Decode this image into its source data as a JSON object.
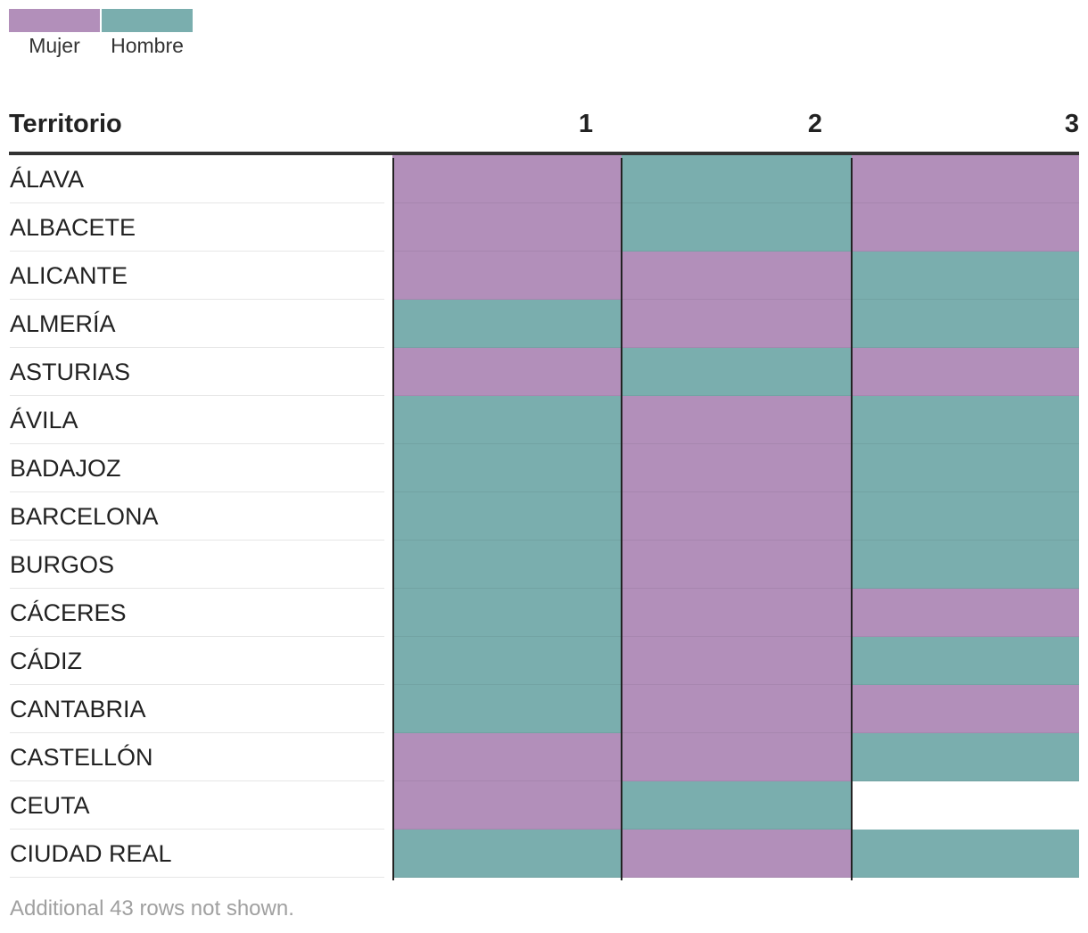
{
  "legend": [
    {
      "label": "Mujer",
      "color": "#b28fba"
    },
    {
      "label": "Hombre",
      "color": "#7aaeae"
    }
  ],
  "colors": {
    "Mujer": "#b28fba",
    "Hombre": "#7aaeae",
    "empty": "#ffffff"
  },
  "table": {
    "headers": [
      "Territorio",
      "1",
      "2",
      "3"
    ]
  },
  "chart_data": {
    "type": "table",
    "columns": [
      "Territorio",
      "1",
      "2",
      "3"
    ],
    "rows": [
      {
        "territorio": "ÁLAVA",
        "values": [
          "Mujer",
          "Hombre",
          "Mujer"
        ]
      },
      {
        "territorio": "ALBACETE",
        "values": [
          "Mujer",
          "Hombre",
          "Mujer"
        ]
      },
      {
        "territorio": "ALICANTE",
        "values": [
          "Mujer",
          "Mujer",
          "Hombre"
        ]
      },
      {
        "territorio": "ALMERÍA",
        "values": [
          "Hombre",
          "Mujer",
          "Hombre"
        ]
      },
      {
        "territorio": "ASTURIAS",
        "values": [
          "Mujer",
          "Hombre",
          "Mujer"
        ]
      },
      {
        "territorio": "ÁVILA",
        "values": [
          "Hombre",
          "Mujer",
          "Hombre"
        ]
      },
      {
        "territorio": "BADAJOZ",
        "values": [
          "Hombre",
          "Mujer",
          "Hombre"
        ]
      },
      {
        "territorio": "BARCELONA",
        "values": [
          "Hombre",
          "Mujer",
          "Hombre"
        ]
      },
      {
        "territorio": "BURGOS",
        "values": [
          "Hombre",
          "Mujer",
          "Hombre"
        ]
      },
      {
        "territorio": "CÁCERES",
        "values": [
          "Hombre",
          "Mujer",
          "Mujer"
        ]
      },
      {
        "territorio": "CÁDIZ",
        "values": [
          "Hombre",
          "Mujer",
          "Hombre"
        ]
      },
      {
        "territorio": "CANTABRIA",
        "values": [
          "Hombre",
          "Mujer",
          "Mujer"
        ]
      },
      {
        "territorio": "CASTELLÓN",
        "values": [
          "Mujer",
          "Mujer",
          "Hombre"
        ]
      },
      {
        "territorio": "CEUTA",
        "values": [
          "Mujer",
          "Hombre",
          null
        ]
      },
      {
        "territorio": "CIUDAD REAL",
        "values": [
          "Hombre",
          "Mujer",
          "Hombre"
        ]
      }
    ]
  },
  "footnote": "Additional 43 rows not shown."
}
